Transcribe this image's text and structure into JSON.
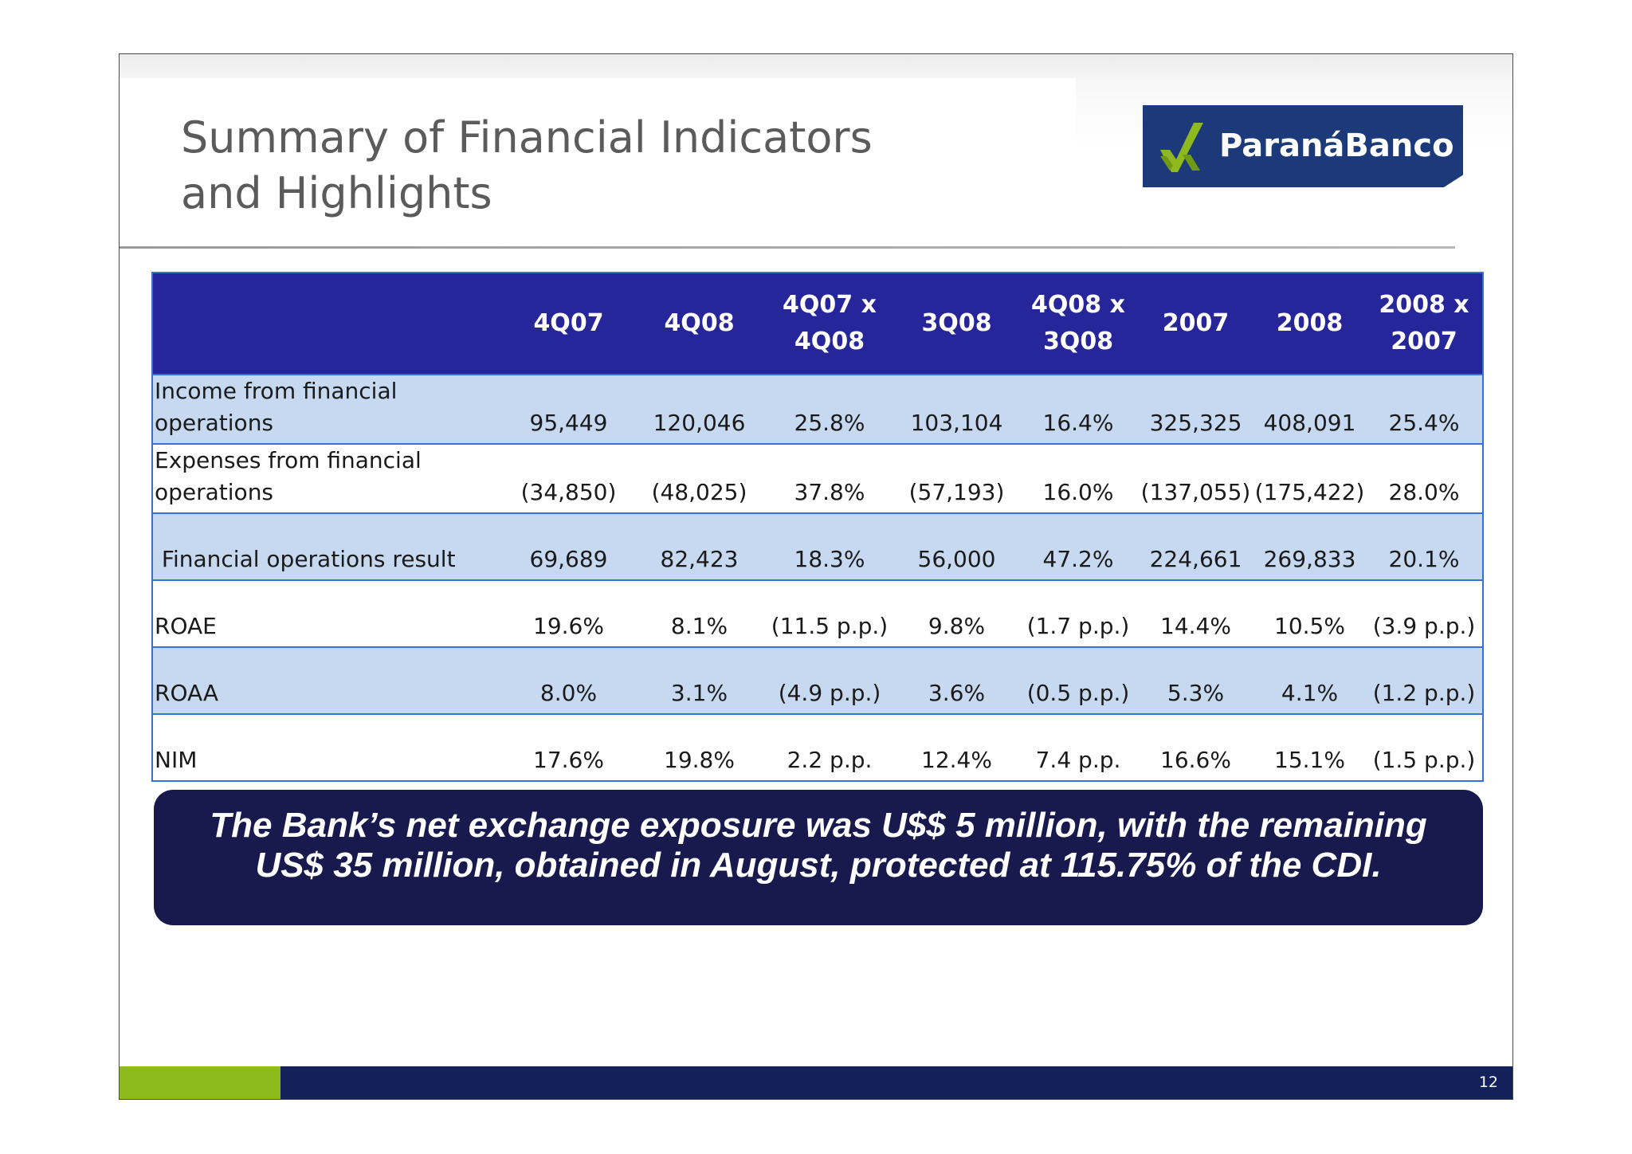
{
  "title": {
    "line1": "Summary of Financial Indicators",
    "line2": "and Highlights"
  },
  "logo": {
    "text": "ParanáBanco",
    "icon": "parana-banco-mark-icon",
    "bg_color": "#1c3a7a",
    "mark_color": "#8fba1e"
  },
  "table": {
    "columns": [
      {
        "line1": "",
        "line2": ""
      },
      {
        "line1": "4Q07",
        "line2": ""
      },
      {
        "line1": "4Q08",
        "line2": ""
      },
      {
        "line1": "4Q07 x",
        "line2": "4Q08"
      },
      {
        "line1": "3Q08",
        "line2": ""
      },
      {
        "line1": "4Q08 x",
        "line2": "3Q08"
      },
      {
        "line1": "2007",
        "line2": ""
      },
      {
        "line1": "2008",
        "line2": ""
      },
      {
        "line1": "2008 x",
        "line2": "2007"
      }
    ],
    "rows": [
      {
        "label": "Income from financial operations",
        "values": [
          "95,449",
          "120,046",
          "25.8%",
          "103,104",
          "16.4%",
          "325,325",
          "408,091",
          "25.4%"
        ]
      },
      {
        "label": "Expenses from financial operations",
        "values": [
          "(34,850)",
          "(48,025)",
          "37.8%",
          "(57,193)",
          "16.0%",
          "(137,055)",
          "(175,422)",
          "28.0%"
        ]
      },
      {
        "label": " Financial operations result",
        "values": [
          "69,689",
          "82,423",
          "18.3%",
          "56,000",
          "47.2%",
          "224,661",
          "269,833",
          "20.1%"
        ]
      },
      {
        "label": "ROAE",
        "values": [
          "19.6%",
          "8.1%",
          "(11.5 p.p.)",
          "9.8%",
          "(1.7 p.p.)",
          "14.4%",
          "10.5%",
          "(3.9 p.p.)"
        ]
      },
      {
        "label": "ROAA",
        "values": [
          "8.0%",
          "3.1%",
          "(4.9 p.p.)",
          "3.6%",
          "(0.5 p.p.)",
          "5.3%",
          "4.1%",
          "(1.2 p.p.)"
        ]
      },
      {
        "label": "NIM",
        "values": [
          "17.6%",
          "19.8%",
          "2.2 p.p.",
          "12.4%",
          "7.4 p.p.",
          "16.6%",
          "15.1%",
          "(1.5 p.p.)"
        ]
      }
    ]
  },
  "highlight": {
    "line1": "The Bank’s net exchange exposure was U$$ 5 million, with the remaining",
    "line2": "US$ 35 million, obtained in August, protected at 115.75% of the CDI."
  },
  "footer": {
    "page_number": "12"
  },
  "colors": {
    "header_bg": "#26269a",
    "shaded_row": "#c6d9f1",
    "border": "#3b6fd8",
    "highlight_bg": "#181a4e",
    "footer_green": "#8fba1e",
    "footer_blue": "#13215b",
    "title_text": "#5b5b5b"
  }
}
